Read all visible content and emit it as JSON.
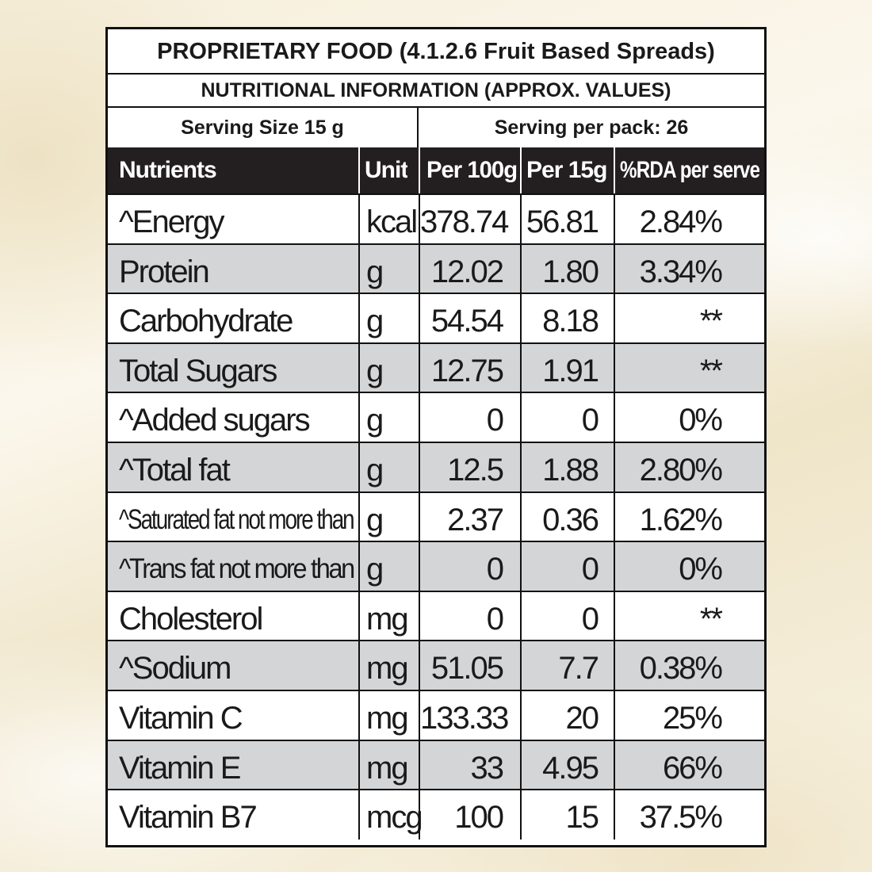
{
  "header": {
    "title": "PROPRIETARY FOOD (4.1.2.6 Fruit Based Spreads)",
    "subtitle": "NUTRITIONAL INFORMATION (APPROX. VALUES)",
    "serving_size": "Serving Size 15 g",
    "serving_per_pack": "Serving per pack: 26"
  },
  "columns": [
    "Nutrients",
    "Unit",
    "Per 100g",
    "Per 15g",
    "%RDA per serve"
  ],
  "rows": [
    {
      "name": "^Energy",
      "unit": "kcal",
      "per100": "378.74",
      "per15": "56.81",
      "rda": "2.84%"
    },
    {
      "name": "Protein",
      "unit": "g",
      "per100": "12.02",
      "per15": "1.80",
      "rda": "3.34%"
    },
    {
      "name": "Carbohydrate",
      "unit": "g",
      "per100": "54.54",
      "per15": "8.18",
      "rda": "**"
    },
    {
      "name": "Total Sugars",
      "unit": "g",
      "per100": "12.75",
      "per15": "1.91",
      "rda": "**"
    },
    {
      "name": "^Added sugars",
      "unit": "g",
      "per100": "0",
      "per15": "0",
      "rda": "0%"
    },
    {
      "name": "^Total fat",
      "unit": "g",
      "per100": "12.5",
      "per15": "1.88",
      "rda": "2.80%"
    },
    {
      "name": "^Saturated fat not more than",
      "unit": "g",
      "per100": "2.37",
      "per15": "0.36",
      "rda": "1.62%"
    },
    {
      "name": "^Trans fat not more than",
      "unit": "g",
      "per100": "0",
      "per15": "0",
      "rda": "0%"
    },
    {
      "name": "Cholesterol",
      "unit": "mg",
      "per100": "0",
      "per15": "0",
      "rda": "**"
    },
    {
      "name": "^Sodium",
      "unit": "mg",
      "per100": "51.05",
      "per15": "7.7",
      "rda": "0.38%"
    },
    {
      "name": "Vitamin C",
      "unit": "mg",
      "per100": "133.33",
      "per15": "20",
      "rda": "25%"
    },
    {
      "name": "Vitamin E",
      "unit": "mg",
      "per100": "33",
      "per15": "4.95",
      "rda": "66%"
    },
    {
      "name": "Vitamin B7",
      "unit": "mcg",
      "per100": "100",
      "per15": "15",
      "rda": "37.5%"
    }
  ],
  "colors": {
    "header_bg": "#231f20",
    "shaded_row": "#d4d5d7",
    "border": "#111111"
  }
}
